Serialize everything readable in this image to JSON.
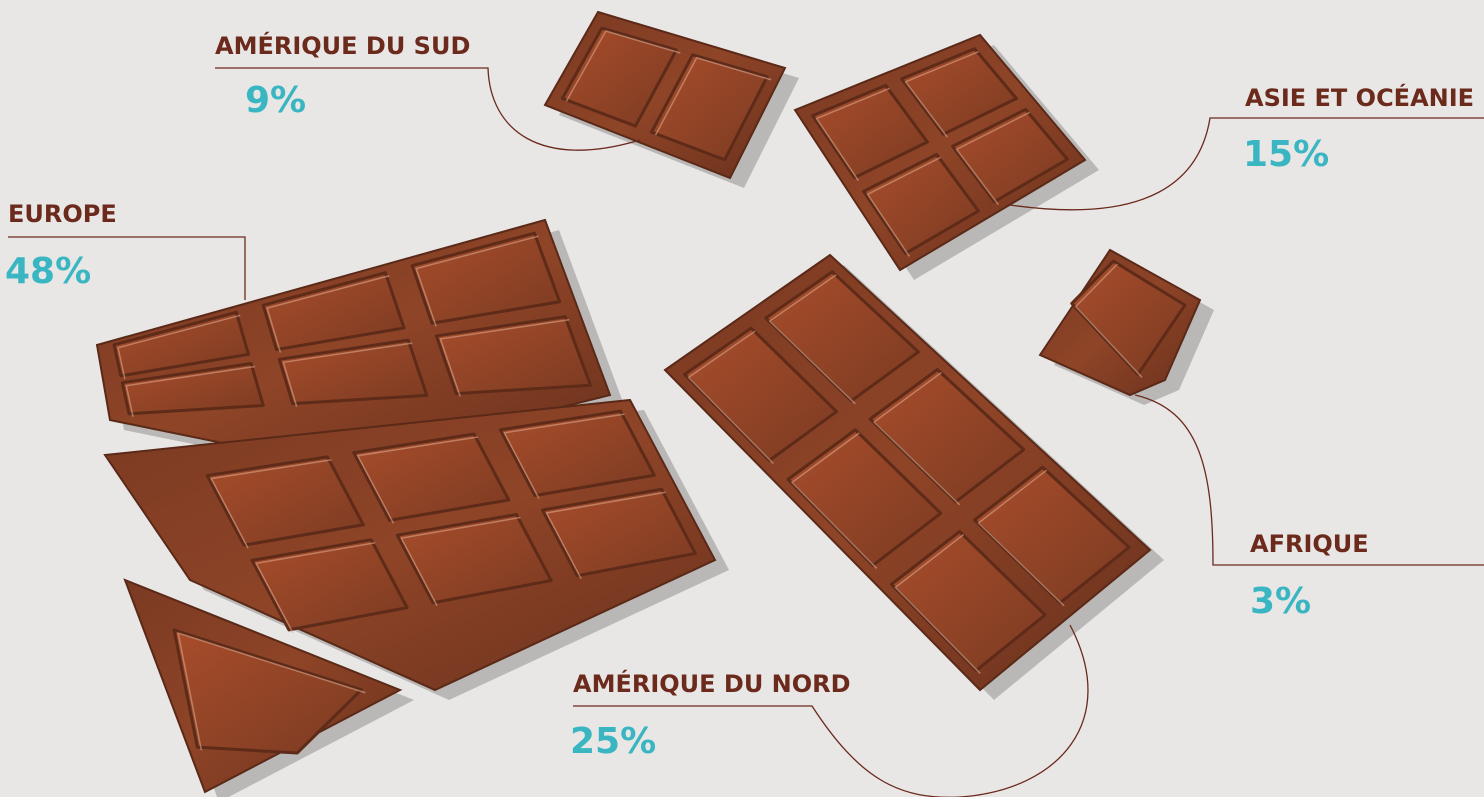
{
  "regions": [
    {
      "name": "AMÉRIQUE DU SUD",
      "share": "9%"
    },
    {
      "name": "ASIE ET OCÉANIE",
      "share": "15%"
    },
    {
      "name": "EUROPE",
      "share": "48%"
    },
    {
      "name": "AFRIQUE",
      "share": "3%"
    },
    {
      "name": "AMÉRIQUE DU NORD",
      "share": "25%"
    }
  ]
}
